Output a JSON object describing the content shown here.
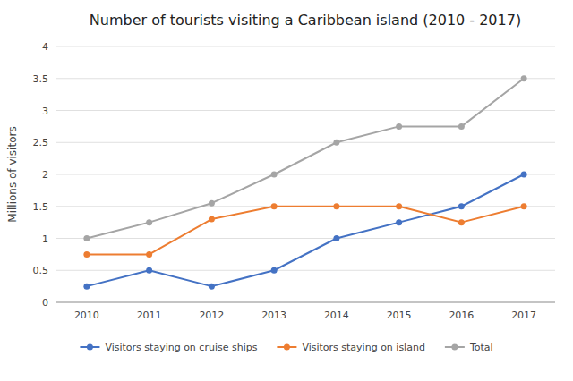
{
  "chart_data": {
    "type": "line",
    "title": "Number of tourists visiting a Caribbean island (2010 - 2017)",
    "y_label": "Millions of visitors",
    "x": [
      2010,
      2011,
      2012,
      2013,
      2014,
      2015,
      2016,
      2017
    ],
    "series": [
      {
        "name": "Visitors staying on cruise ships",
        "color": "#4472c4",
        "values": [
          0.25,
          0.5,
          0.25,
          0.5,
          1.0,
          1.25,
          1.5,
          2.0
        ]
      },
      {
        "name": "Visitors staying on island",
        "color": "#ed7d31",
        "values": [
          0.75,
          0.75,
          1.3,
          1.5,
          1.5,
          1.5,
          1.25,
          1.5
        ]
      },
      {
        "name": "Total",
        "color": "#a5a5a5",
        "values": [
          1.0,
          1.25,
          1.55,
          2.0,
          2.5,
          2.75,
          2.75,
          3.5
        ]
      }
    ],
    "xlim": [
      2009.5,
      2017.5
    ],
    "xticks": [
      2010,
      2011,
      2012,
      2013,
      2014,
      2015,
      2016,
      2017
    ],
    "ylim": [
      0,
      4.0
    ],
    "yticks": [
      0,
      0.5,
      1.0,
      1.5,
      2.0,
      2.5,
      3.0,
      3.5,
      4.0
    ],
    "grid": true,
    "legend": "bottom",
    "marker": "circle"
  }
}
